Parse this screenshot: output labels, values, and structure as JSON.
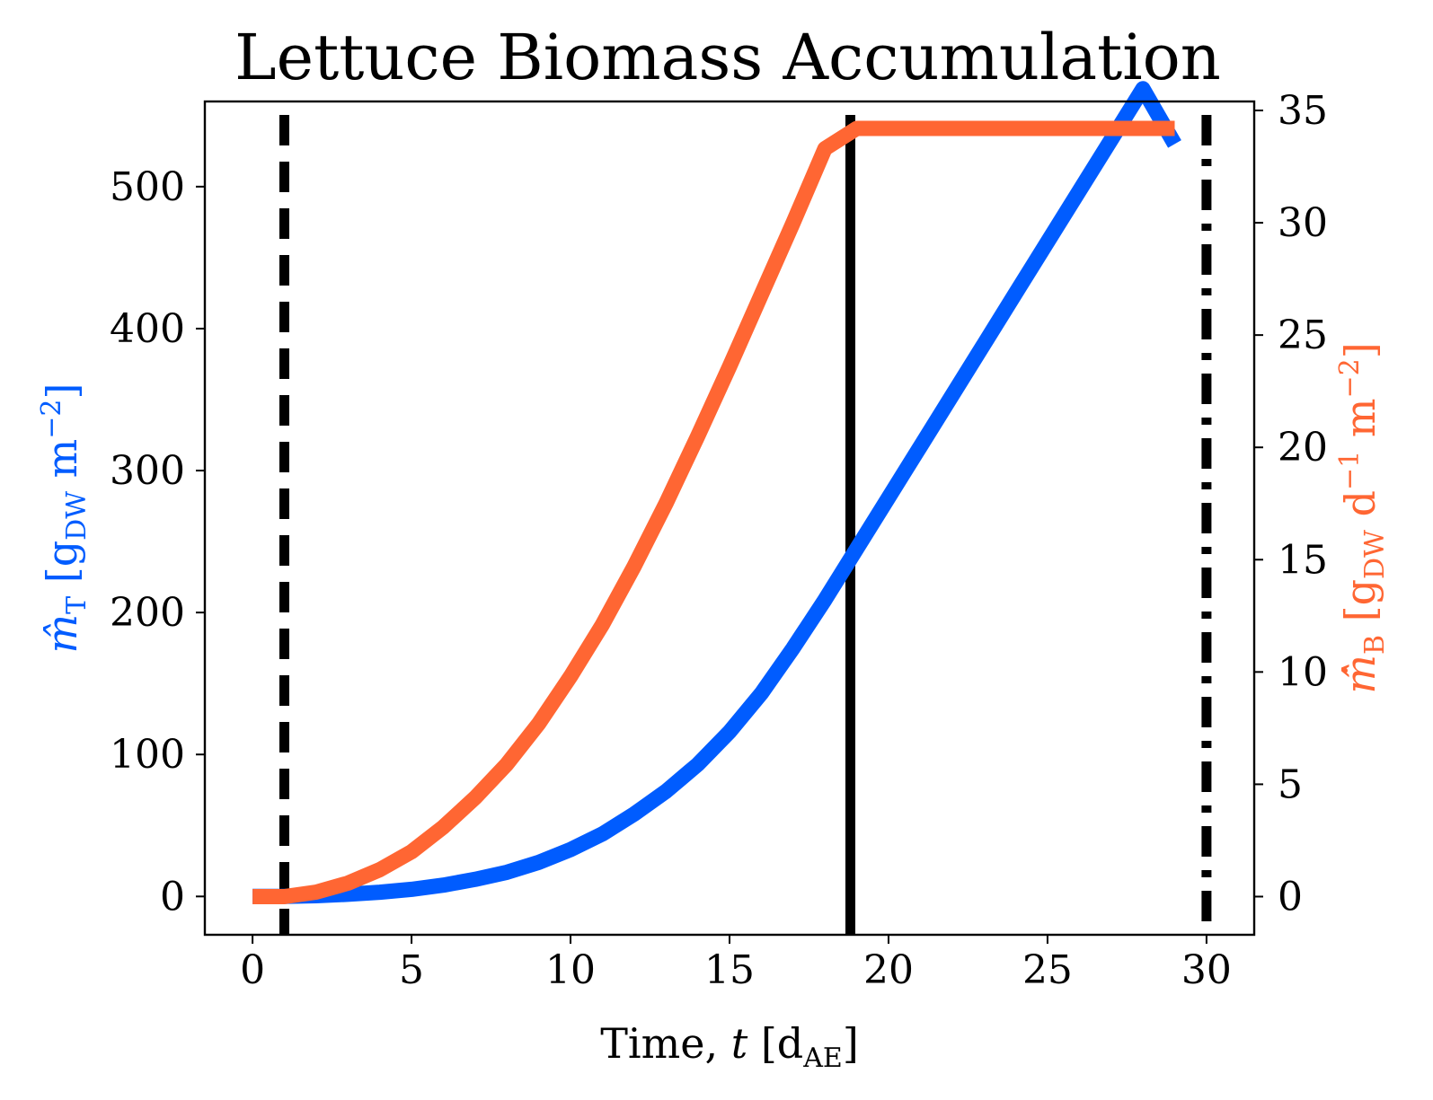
{
  "chart_data": {
    "type": "line",
    "title": "Lettuce Biomass Accumulation",
    "x_axis": {
      "label_main": "Time, ",
      "label_var": "t",
      "label_unit_open": " [d",
      "label_unit_sub": "AE",
      "label_unit_close": "]",
      "range": [
        -1.5,
        31.5
      ],
      "ticks": [
        0,
        5,
        10,
        15,
        20,
        25,
        30
      ]
    },
    "y_left": {
      "label_symbol": "m̂",
      "label_symbol_sub": "T",
      "label_unit_open": " [g",
      "label_unit_sub": "DW",
      "label_unit_rest": " m",
      "label_unit_sup": "−2",
      "label_unit_close": "]",
      "color": "#005cff",
      "range": [
        -27,
        560
      ],
      "ticks": [
        0,
        100,
        200,
        300,
        400,
        500
      ]
    },
    "y_right": {
      "label_symbol": "m̂̇",
      "label_symbol_sub": "B",
      "label_unit_open": " [g",
      "label_unit_sub": "DW",
      "label_unit_mid": " d",
      "label_unit_sup1": "−1",
      "label_unit_rest": " m",
      "label_unit_sup2": "−2",
      "label_unit_close": "]",
      "color": "#ff6633",
      "range": [
        -1.7,
        35.4
      ],
      "ticks": [
        0,
        5,
        10,
        15,
        20,
        25,
        30,
        35
      ]
    },
    "series": [
      {
        "axis": "left",
        "color": "#005cff",
        "x": [
          0,
          1,
          2,
          3,
          4,
          5,
          6,
          7,
          8,
          9,
          10,
          11,
          12,
          13,
          14,
          15,
          16,
          17,
          18,
          19,
          20,
          21,
          22,
          23,
          24,
          25,
          26,
          27,
          28,
          29
        ],
        "y": [
          0,
          0,
          0.5,
          1.5,
          3,
          5,
          8,
          12,
          17,
          24,
          33,
          44,
          58,
          74,
          93,
          116,
          143,
          175,
          209,
          245,
          281,
          317,
          353,
          389,
          425,
          461,
          497,
          533,
          569,
          530
        ]
      },
      {
        "axis": "right",
        "color": "#ff6633",
        "x": [
          0,
          1,
          2,
          3,
          4,
          5,
          6,
          7,
          8,
          9,
          10,
          11,
          12,
          13,
          14,
          15,
          16,
          17,
          18,
          19,
          20,
          21,
          22,
          23,
          24,
          25,
          26,
          27,
          28,
          29
        ],
        "y": [
          0,
          0,
          0.2,
          0.6,
          1.2,
          2.0,
          3.1,
          4.4,
          5.9,
          7.7,
          9.8,
          12.1,
          14.7,
          17.5,
          20.5,
          23.6,
          26.8,
          30.0,
          33.3,
          34.2,
          34.2,
          34.2,
          34.2,
          34.2,
          34.2,
          34.2,
          34.2,
          34.2,
          34.2,
          34.2
        ]
      }
    ],
    "vertical_lines": [
      {
        "x": 1,
        "style": "dashed"
      },
      {
        "x": 18.8,
        "style": "solid"
      },
      {
        "x": 30,
        "style": "dashdot"
      }
    ]
  }
}
